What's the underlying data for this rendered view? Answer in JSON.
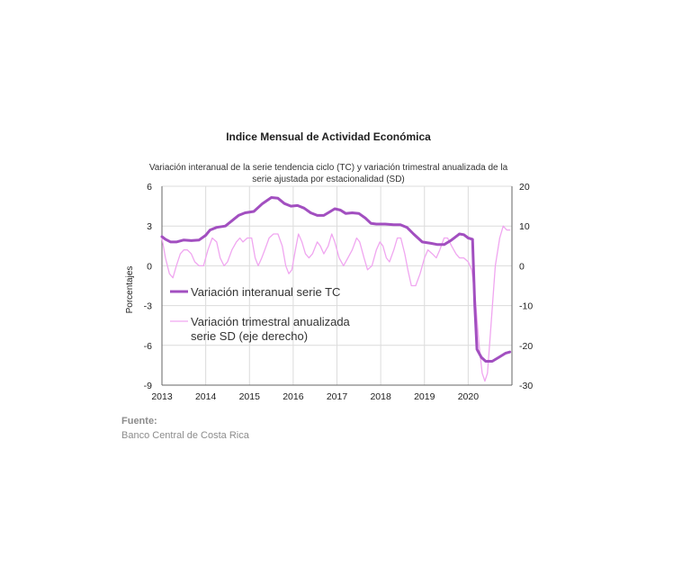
{
  "colors": {
    "tc": "#a24fc0",
    "sd": "#f0a6f0",
    "grid": "#dcdcdc",
    "axis": "#666666"
  },
  "source": {
    "heading": "Fuente:",
    "text": "Banco Central de Costa Rica"
  },
  "chart_data": {
    "type": "line",
    "title": "Indice Mensual de  Actividad Económica",
    "subtitle_lines": [
      "Variación interanual de la serie tendencia ciclo (TC) y variación trimestral anualizada de la",
      "serie ajustada por estacionalidad (SD)"
    ],
    "ylabel": "Porcentajes",
    "y_left": {
      "min": -9,
      "max": 6,
      "ticks": [
        6,
        3,
        0,
        -3,
        -6,
        -9
      ]
    },
    "y_right": {
      "min": -30,
      "max": 20,
      "ticks": [
        20,
        10,
        0,
        -10,
        -20,
        -30
      ]
    },
    "x_range": [
      2013,
      2021
    ],
    "x_ticks": [
      2013,
      2014,
      2015,
      2016,
      2017,
      2018,
      2019,
      2020
    ],
    "grid": true,
    "legend_position": "left-center",
    "series": [
      {
        "name": "Variación interanual serie TC",
        "axis": "left",
        "width": 3,
        "points": [
          [
            2013.0,
            2.2
          ],
          [
            2013.08,
            2.0
          ],
          [
            2013.2,
            1.8
          ],
          [
            2013.33,
            1.8
          ],
          [
            2013.5,
            1.95
          ],
          [
            2013.67,
            1.9
          ],
          [
            2013.85,
            1.95
          ],
          [
            2014.0,
            2.3
          ],
          [
            2014.1,
            2.7
          ],
          [
            2014.25,
            2.9
          ],
          [
            2014.45,
            3.0
          ],
          [
            2014.6,
            3.4
          ],
          [
            2014.75,
            3.8
          ],
          [
            2014.9,
            4.0
          ],
          [
            2015.1,
            4.1
          ],
          [
            2015.3,
            4.7
          ],
          [
            2015.5,
            5.15
          ],
          [
            2015.65,
            5.1
          ],
          [
            2015.8,
            4.7
          ],
          [
            2015.95,
            4.5
          ],
          [
            2016.1,
            4.55
          ],
          [
            2016.25,
            4.35
          ],
          [
            2016.4,
            4.0
          ],
          [
            2016.55,
            3.8
          ],
          [
            2016.7,
            3.8
          ],
          [
            2016.85,
            4.1
          ],
          [
            2016.95,
            4.3
          ],
          [
            2017.08,
            4.2
          ],
          [
            2017.2,
            3.95
          ],
          [
            2017.35,
            4.0
          ],
          [
            2017.5,
            3.95
          ],
          [
            2017.65,
            3.6
          ],
          [
            2017.78,
            3.2
          ],
          [
            2017.9,
            3.15
          ],
          [
            2018.1,
            3.15
          ],
          [
            2018.3,
            3.1
          ],
          [
            2018.45,
            3.1
          ],
          [
            2018.6,
            2.9
          ],
          [
            2018.75,
            2.4
          ],
          [
            2018.95,
            1.8
          ],
          [
            2019.15,
            1.7
          ],
          [
            2019.3,
            1.6
          ],
          [
            2019.45,
            1.6
          ],
          [
            2019.6,
            1.9
          ],
          [
            2019.8,
            2.4
          ],
          [
            2019.9,
            2.35
          ],
          [
            2020.0,
            2.1
          ],
          [
            2020.1,
            2.0
          ],
          [
            2020.15,
            -3.0
          ],
          [
            2020.2,
            -6.3
          ],
          [
            2020.3,
            -6.9
          ],
          [
            2020.4,
            -7.2
          ],
          [
            2020.55,
            -7.2
          ],
          [
            2020.7,
            -6.9
          ],
          [
            2020.85,
            -6.6
          ],
          [
            2020.95,
            -6.5
          ]
        ]
      },
      {
        "name": "Variación trimestral anualizada serie SD (eje derecho)",
        "axis": "right",
        "width": 1.3,
        "points": [
          [
            2013.0,
            7
          ],
          [
            2013.08,
            2
          ],
          [
            2013.17,
            -2
          ],
          [
            2013.25,
            -3
          ],
          [
            2013.33,
            0
          ],
          [
            2013.42,
            3
          ],
          [
            2013.5,
            4
          ],
          [
            2013.58,
            4
          ],
          [
            2013.67,
            3
          ],
          [
            2013.75,
            1
          ],
          [
            2013.85,
            0
          ],
          [
            2013.95,
            0
          ],
          [
            2014.05,
            4
          ],
          [
            2014.15,
            7
          ],
          [
            2014.25,
            6
          ],
          [
            2014.33,
            2
          ],
          [
            2014.42,
            0
          ],
          [
            2014.5,
            1
          ],
          [
            2014.6,
            4
          ],
          [
            2014.7,
            6
          ],
          [
            2014.78,
            7
          ],
          [
            2014.85,
            6
          ],
          [
            2014.95,
            7
          ],
          [
            2015.05,
            7
          ],
          [
            2015.13,
            2
          ],
          [
            2015.2,
            0
          ],
          [
            2015.28,
            2
          ],
          [
            2015.35,
            4
          ],
          [
            2015.45,
            7
          ],
          [
            2015.55,
            8
          ],
          [
            2015.65,
            8
          ],
          [
            2015.75,
            5
          ],
          [
            2015.83,
            0
          ],
          [
            2015.9,
            -2
          ],
          [
            2015.97,
            -1
          ],
          [
            2016.05,
            4
          ],
          [
            2016.12,
            8
          ],
          [
            2016.2,
            6
          ],
          [
            2016.28,
            3
          ],
          [
            2016.36,
            2
          ],
          [
            2016.44,
            3
          ],
          [
            2016.55,
            6
          ],
          [
            2016.62,
            5
          ],
          [
            2016.7,
            3
          ],
          [
            2016.8,
            5
          ],
          [
            2016.88,
            8
          ],
          [
            2016.95,
            6
          ],
          [
            2017.05,
            2
          ],
          [
            2017.15,
            0
          ],
          [
            2017.25,
            2
          ],
          [
            2017.35,
            4
          ],
          [
            2017.45,
            7
          ],
          [
            2017.52,
            6
          ],
          [
            2017.62,
            2
          ],
          [
            2017.7,
            -1
          ],
          [
            2017.8,
            0
          ],
          [
            2017.9,
            4
          ],
          [
            2017.98,
            6
          ],
          [
            2018.05,
            5
          ],
          [
            2018.13,
            2
          ],
          [
            2018.2,
            1
          ],
          [
            2018.3,
            4
          ],
          [
            2018.38,
            7
          ],
          [
            2018.46,
            7
          ],
          [
            2018.55,
            3
          ],
          [
            2018.62,
            -1
          ],
          [
            2018.7,
            -5
          ],
          [
            2018.8,
            -5
          ],
          [
            2018.9,
            -2
          ],
          [
            2019.0,
            2
          ],
          [
            2019.08,
            4
          ],
          [
            2019.18,
            3
          ],
          [
            2019.27,
            2
          ],
          [
            2019.35,
            4
          ],
          [
            2019.45,
            7
          ],
          [
            2019.53,
            7
          ],
          [
            2019.62,
            5
          ],
          [
            2019.72,
            3
          ],
          [
            2019.8,
            2
          ],
          [
            2019.9,
            2
          ],
          [
            2020.0,
            1
          ],
          [
            2020.08,
            -1
          ],
          [
            2020.16,
            -8
          ],
          [
            2020.25,
            -20
          ],
          [
            2020.32,
            -27
          ],
          [
            2020.38,
            -29
          ],
          [
            2020.44,
            -27
          ],
          [
            2020.52,
            -15
          ],
          [
            2020.62,
            0
          ],
          [
            2020.72,
            7
          ],
          [
            2020.8,
            10
          ],
          [
            2020.88,
            9
          ],
          [
            2020.95,
            9
          ]
        ]
      }
    ]
  }
}
